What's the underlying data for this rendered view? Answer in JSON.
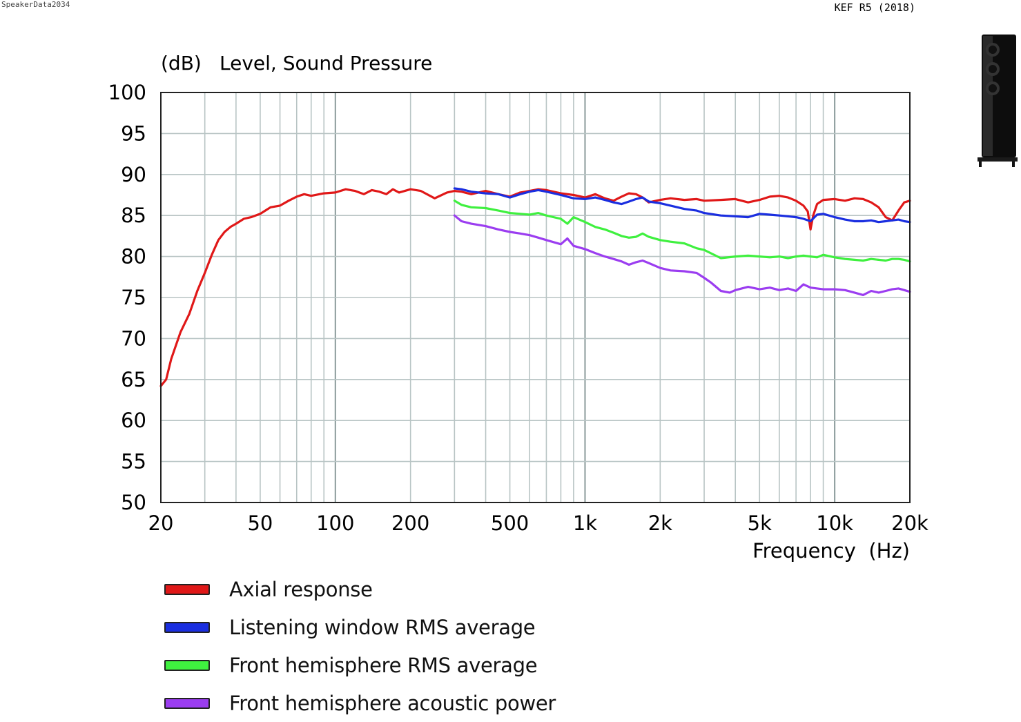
{
  "header": {
    "watermark": "SpeakerData2034",
    "model": "KEF R5 (2018)",
    "product_image": "speaker-icon"
  },
  "chart_data": {
    "type": "line",
    "title": "Level, Sound Pressure",
    "ylabel": "(dB)",
    "xlabel": "Frequency  (Hz)",
    "xscale": "log",
    "xlim": [
      20,
      20000
    ],
    "ylim": [
      50,
      100
    ],
    "x_ticks": [
      20,
      50,
      100,
      200,
      500,
      1000,
      2000,
      5000,
      10000,
      20000
    ],
    "x_tick_labels": [
      "20",
      "50",
      "100",
      "200",
      "500",
      "1k",
      "2k",
      "5k",
      "10k",
      "20k"
    ],
    "y_ticks": [
      100,
      95,
      90,
      85,
      80,
      75,
      70,
      65,
      60,
      55,
      50
    ],
    "grid": true,
    "legend_position": "bottom-left",
    "series": [
      {
        "name": "Axial response",
        "color": "#e01818",
        "x": [
          20,
          21,
          22,
          24,
          26,
          28,
          30,
          32,
          34,
          36,
          38,
          40,
          43,
          46,
          50,
          55,
          60,
          65,
          70,
          75,
          80,
          90,
          100,
          110,
          120,
          130,
          140,
          150,
          160,
          170,
          180,
          200,
          220,
          250,
          280,
          300,
          320,
          350,
          400,
          450,
          500,
          550,
          600,
          650,
          700,
          800,
          900,
          1000,
          1100,
          1200,
          1300,
          1400,
          1500,
          1600,
          1700,
          1800,
          2000,
          2200,
          2500,
          2800,
          3000,
          3500,
          4000,
          4500,
          5000,
          5500,
          6000,
          6500,
          7000,
          7500,
          7800,
          8000,
          8200,
          8500,
          9000,
          10000,
          11000,
          12000,
          13000,
          14000,
          15000,
          16000,
          17000,
          18000,
          19000,
          20000
        ],
        "values": [
          64.2,
          65.0,
          67.5,
          70.8,
          73.0,
          75.8,
          78.0,
          80.2,
          82.0,
          83.0,
          83.6,
          84.0,
          84.6,
          84.8,
          85.2,
          86.0,
          86.2,
          86.8,
          87.3,
          87.6,
          87.4,
          87.7,
          87.8,
          88.2,
          88.0,
          87.6,
          88.1,
          87.9,
          87.6,
          88.2,
          87.8,
          88.2,
          88.0,
          87.1,
          87.8,
          88.0,
          87.9,
          87.6,
          88.0,
          87.6,
          87.3,
          87.8,
          88.0,
          88.2,
          88.1,
          87.7,
          87.5,
          87.2,
          87.6,
          87.1,
          86.8,
          87.3,
          87.7,
          87.6,
          87.2,
          86.6,
          86.9,
          87.1,
          86.9,
          87.0,
          86.8,
          86.9,
          87.0,
          86.6,
          86.9,
          87.3,
          87.4,
          87.2,
          86.8,
          86.2,
          85.5,
          83.3,
          85.0,
          86.4,
          86.9,
          87.0,
          86.8,
          87.1,
          87.0,
          86.6,
          86.0,
          84.8,
          84.4,
          85.6,
          86.6,
          86.8
        ]
      },
      {
        "name": "Listening window RMS average",
        "color": "#1a2ee0",
        "x": [
          300,
          320,
          350,
          400,
          450,
          500,
          550,
          600,
          650,
          700,
          800,
          900,
          1000,
          1100,
          1200,
          1300,
          1400,
          1500,
          1600,
          1700,
          1800,
          2000,
          2200,
          2500,
          2800,
          3000,
          3500,
          4000,
          4500,
          5000,
          5500,
          6000,
          6500,
          7000,
          7500,
          8000,
          8500,
          9000,
          10000,
          11000,
          12000,
          13000,
          14000,
          15000,
          16000,
          17000,
          18000,
          19000,
          20000
        ],
        "values": [
          88.3,
          88.2,
          87.9,
          87.7,
          87.6,
          87.2,
          87.6,
          87.9,
          88.1,
          87.9,
          87.5,
          87.1,
          87.0,
          87.2,
          86.9,
          86.6,
          86.4,
          86.7,
          87.0,
          87.2,
          86.7,
          86.5,
          86.2,
          85.8,
          85.6,
          85.3,
          85.0,
          84.9,
          84.8,
          85.2,
          85.1,
          85.0,
          84.9,
          84.8,
          84.6,
          84.3,
          85.1,
          85.2,
          84.8,
          84.5,
          84.3,
          84.3,
          84.4,
          84.2,
          84.3,
          84.4,
          84.5,
          84.3,
          84.2
        ]
      },
      {
        "name": "Front hemisphere RMS average",
        "color": "#3ff03f",
        "x": [
          300,
          320,
          350,
          400,
          450,
          500,
          550,
          600,
          650,
          700,
          800,
          850,
          900,
          1000,
          1100,
          1200,
          1300,
          1400,
          1500,
          1600,
          1700,
          1800,
          2000,
          2200,
          2500,
          2800,
          3000,
          3500,
          4000,
          4500,
          5000,
          5500,
          6000,
          6500,
          7000,
          7500,
          8000,
          8500,
          9000,
          10000,
          11000,
          12000,
          13000,
          14000,
          15000,
          16000,
          17000,
          18000,
          19000,
          20000
        ],
        "values": [
          86.8,
          86.3,
          86.0,
          85.9,
          85.6,
          85.3,
          85.2,
          85.1,
          85.3,
          85.0,
          84.6,
          84.0,
          84.8,
          84.2,
          83.6,
          83.3,
          82.9,
          82.5,
          82.3,
          82.4,
          82.8,
          82.4,
          82.0,
          81.8,
          81.6,
          81.0,
          80.8,
          79.8,
          80.0,
          80.1,
          80.0,
          79.9,
          80.0,
          79.8,
          80.0,
          80.1,
          80.0,
          79.9,
          80.2,
          79.9,
          79.7,
          79.6,
          79.5,
          79.7,
          79.6,
          79.5,
          79.7,
          79.7,
          79.6,
          79.4
        ]
      },
      {
        "name": "Front hemisphere acoustic power",
        "color": "#9b3df0",
        "x": [
          300,
          320,
          350,
          400,
          450,
          500,
          550,
          600,
          650,
          700,
          800,
          850,
          900,
          1000,
          1100,
          1200,
          1300,
          1400,
          1500,
          1600,
          1700,
          1800,
          2000,
          2200,
          2500,
          2800,
          3000,
          3200,
          3500,
          3800,
          4000,
          4500,
          5000,
          5500,
          6000,
          6500,
          7000,
          7500,
          8000,
          8500,
          9000,
          10000,
          11000,
          12000,
          13000,
          14000,
          15000,
          16000,
          17000,
          18000,
          19000,
          20000
        ],
        "values": [
          85.0,
          84.3,
          84.0,
          83.7,
          83.3,
          83.0,
          82.8,
          82.6,
          82.3,
          82.0,
          81.5,
          82.2,
          81.3,
          80.9,
          80.4,
          80.0,
          79.7,
          79.4,
          79.0,
          79.3,
          79.5,
          79.2,
          78.6,
          78.3,
          78.2,
          78.0,
          77.4,
          76.8,
          75.8,
          75.6,
          75.9,
          76.3,
          76.0,
          76.2,
          75.9,
          76.1,
          75.8,
          76.6,
          76.2,
          76.1,
          76.0,
          76.0,
          75.9,
          75.6,
          75.3,
          75.8,
          75.6,
          75.8,
          76.0,
          76.1,
          75.9,
          75.7
        ]
      }
    ]
  }
}
